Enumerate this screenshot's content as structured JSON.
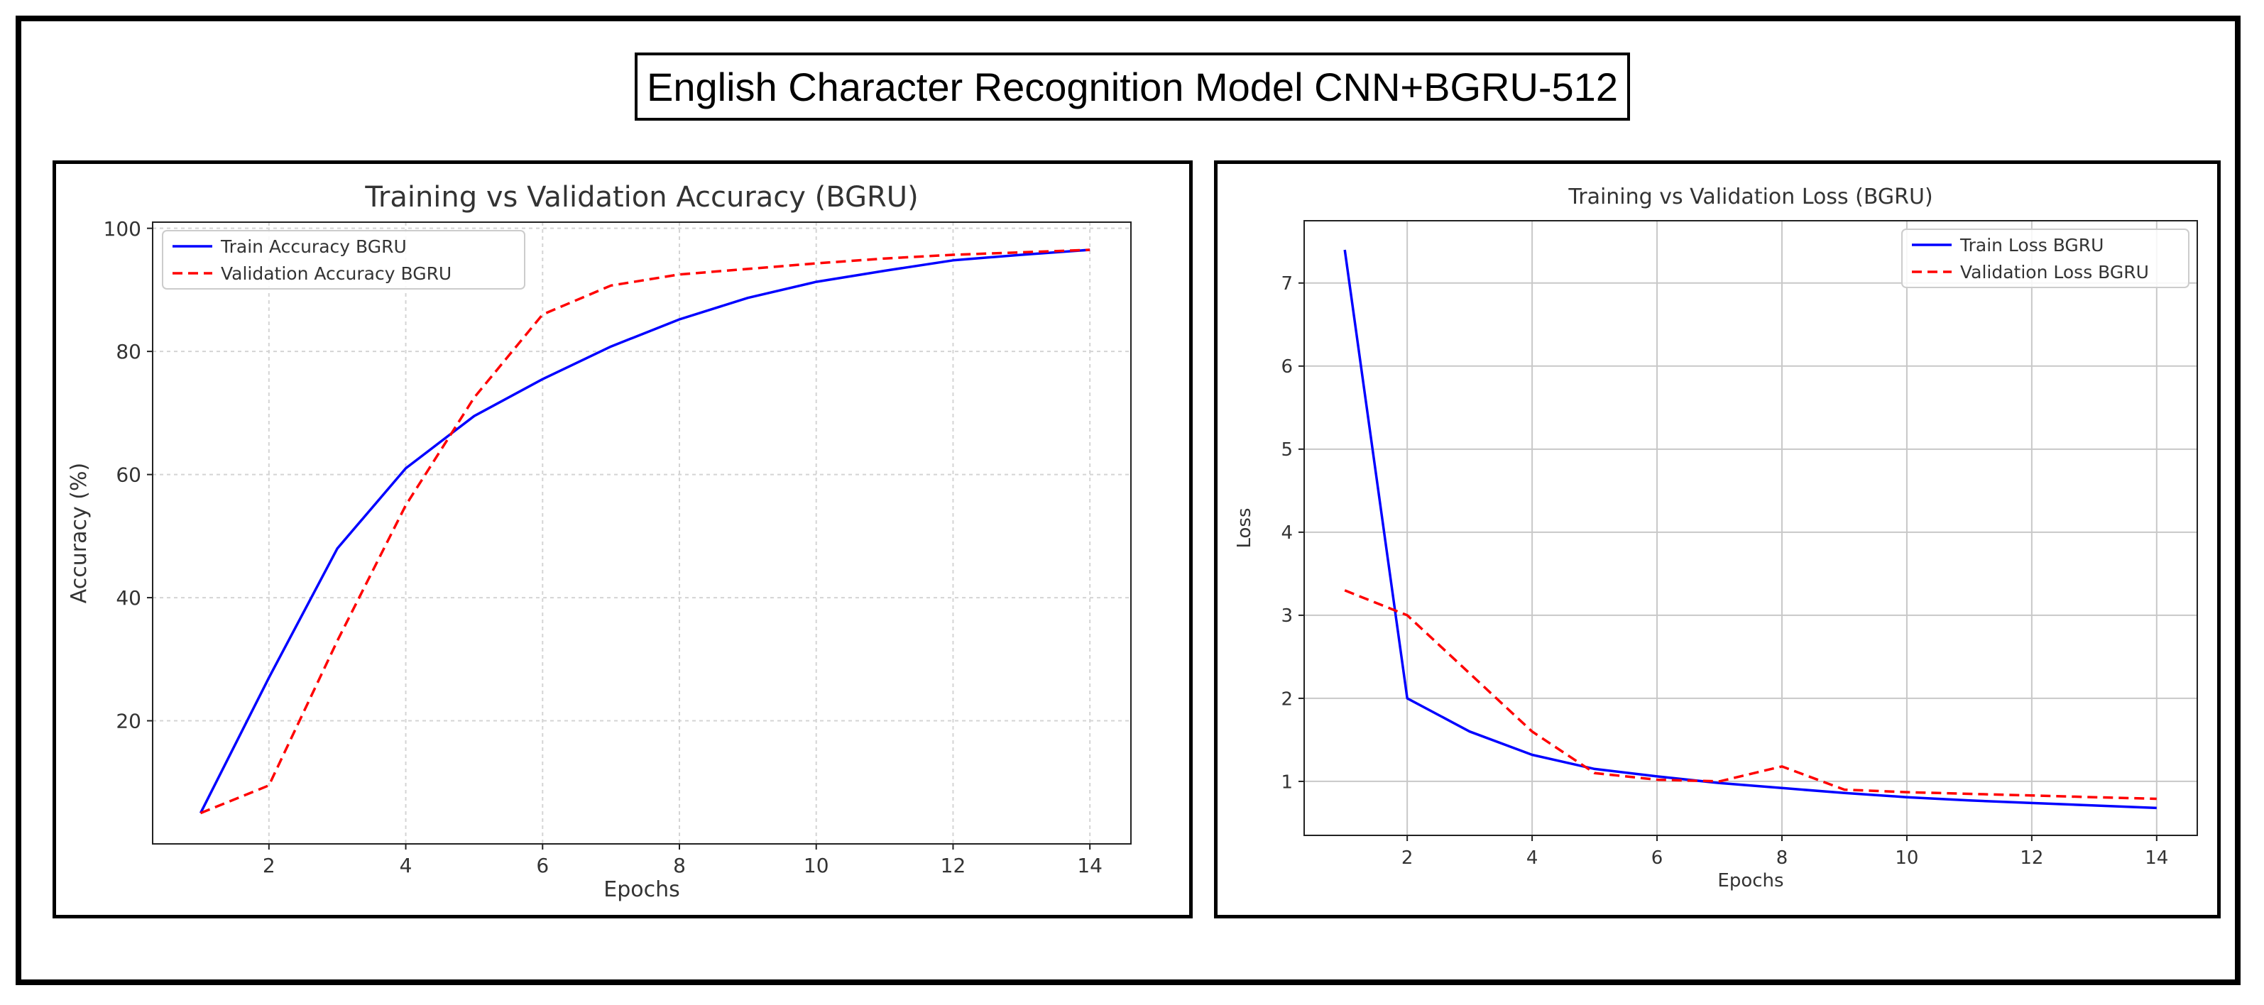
{
  "title": "English Character Recognition Model CNN+BGRU-512",
  "colors": {
    "train": "#0000ff",
    "validation": "#ff0000"
  },
  "chart_data": [
    {
      "type": "line",
      "title": "Training vs Validation Accuracy (BGRU)",
      "xlabel": "Epochs",
      "ylabel": "Accuracy (%)",
      "xlim": [
        0.3,
        14.6
      ],
      "ylim": [
        0,
        101
      ],
      "xticks": [
        2,
        4,
        6,
        8,
        10,
        12,
        14
      ],
      "yticks": [
        20,
        40,
        60,
        80,
        100
      ],
      "grid": "dashed",
      "legend": "top-left",
      "x": [
        1,
        2,
        3,
        4,
        5,
        6,
        7,
        8,
        9,
        10,
        11,
        12,
        13,
        14
      ],
      "series": [
        {
          "name": "Train Accuracy BGRU",
          "style": "solid",
          "values": [
            5,
            27,
            48,
            61,
            69.5,
            75.5,
            80.8,
            85.2,
            88.7,
            91.3,
            93.1,
            94.8,
            95.7,
            96.5
          ]
        },
        {
          "name": "Validation Accuracy BGRU",
          "style": "dashed",
          "values": [
            5,
            9.5,
            33,
            55,
            72.5,
            86,
            90.7,
            92.5,
            93.4,
            94.3,
            95.1,
            95.7,
            96.1,
            96.5
          ]
        }
      ]
    },
    {
      "type": "line",
      "title": "Training vs Validation Loss (BGRU)",
      "xlabel": "Epochs",
      "ylabel": "Loss",
      "xlim": [
        0.35,
        14.65
      ],
      "ylim": [
        0.35,
        7.75
      ],
      "xticks": [
        2,
        4,
        6,
        8,
        10,
        12,
        14
      ],
      "yticks": [
        1,
        2,
        3,
        4,
        5,
        6,
        7
      ],
      "grid": "solid",
      "legend": "top-right",
      "x": [
        1,
        2,
        3,
        4,
        5,
        6,
        7,
        8,
        9,
        10,
        11,
        12,
        13,
        14
      ],
      "series": [
        {
          "name": "Train Loss BGRU",
          "style": "solid",
          "values": [
            7.4,
            2.0,
            1.6,
            1.32,
            1.15,
            1.06,
            0.98,
            0.92,
            0.86,
            0.81,
            0.77,
            0.74,
            0.71,
            0.68
          ]
        },
        {
          "name": "Validation Loss BGRU",
          "style": "dashed",
          "values": [
            3.3,
            3.0,
            2.3,
            1.6,
            1.1,
            1.02,
            1.0,
            1.18,
            0.9,
            0.87,
            0.85,
            0.83,
            0.81,
            0.79
          ]
        }
      ]
    }
  ]
}
